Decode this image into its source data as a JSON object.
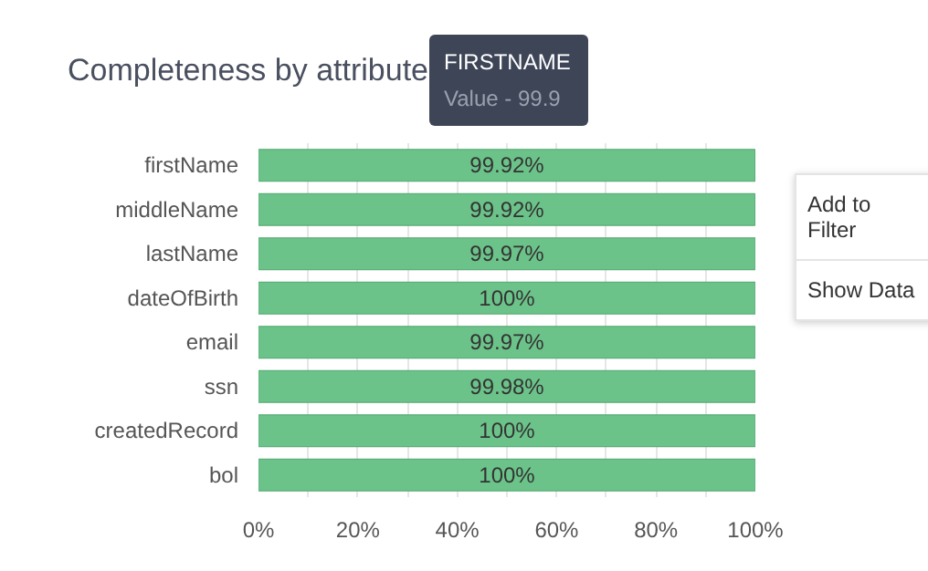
{
  "chart_data": {
    "type": "bar",
    "orientation": "horizontal",
    "title": "Completeness by attribute",
    "categories": [
      "firstName",
      "middleName",
      "lastName",
      "dateOfBirth",
      "email",
      "ssn",
      "createdRecord",
      "bol"
    ],
    "values": [
      99.92,
      99.92,
      99.97,
      100,
      99.97,
      99.98,
      100,
      100
    ],
    "value_labels": [
      "99.92%",
      "99.92%",
      "99.97%",
      "100%",
      "99.97%",
      "99.98%",
      "100%",
      "100%"
    ],
    "color": "#6cc38a",
    "xlim": [
      0,
      100
    ],
    "xticks": [
      {
        "value": 0,
        "label": "0%"
      },
      {
        "value": 10,
        "label": null
      },
      {
        "value": 20,
        "label": "20%"
      },
      {
        "value": 30,
        "label": null
      },
      {
        "value": 40,
        "label": "40%"
      },
      {
        "value": 50,
        "label": null
      },
      {
        "value": 60,
        "label": "60%"
      },
      {
        "value": 70,
        "label": null
      },
      {
        "value": 80,
        "label": "80%"
      },
      {
        "value": 90,
        "label": null
      },
      {
        "value": 100,
        "label": "100%"
      }
    ],
    "grid": "x",
    "annotations": [
      "FIRSTNAME",
      "Value - 99.9",
      "Add to Filter",
      "Show Data"
    ]
  }
}
